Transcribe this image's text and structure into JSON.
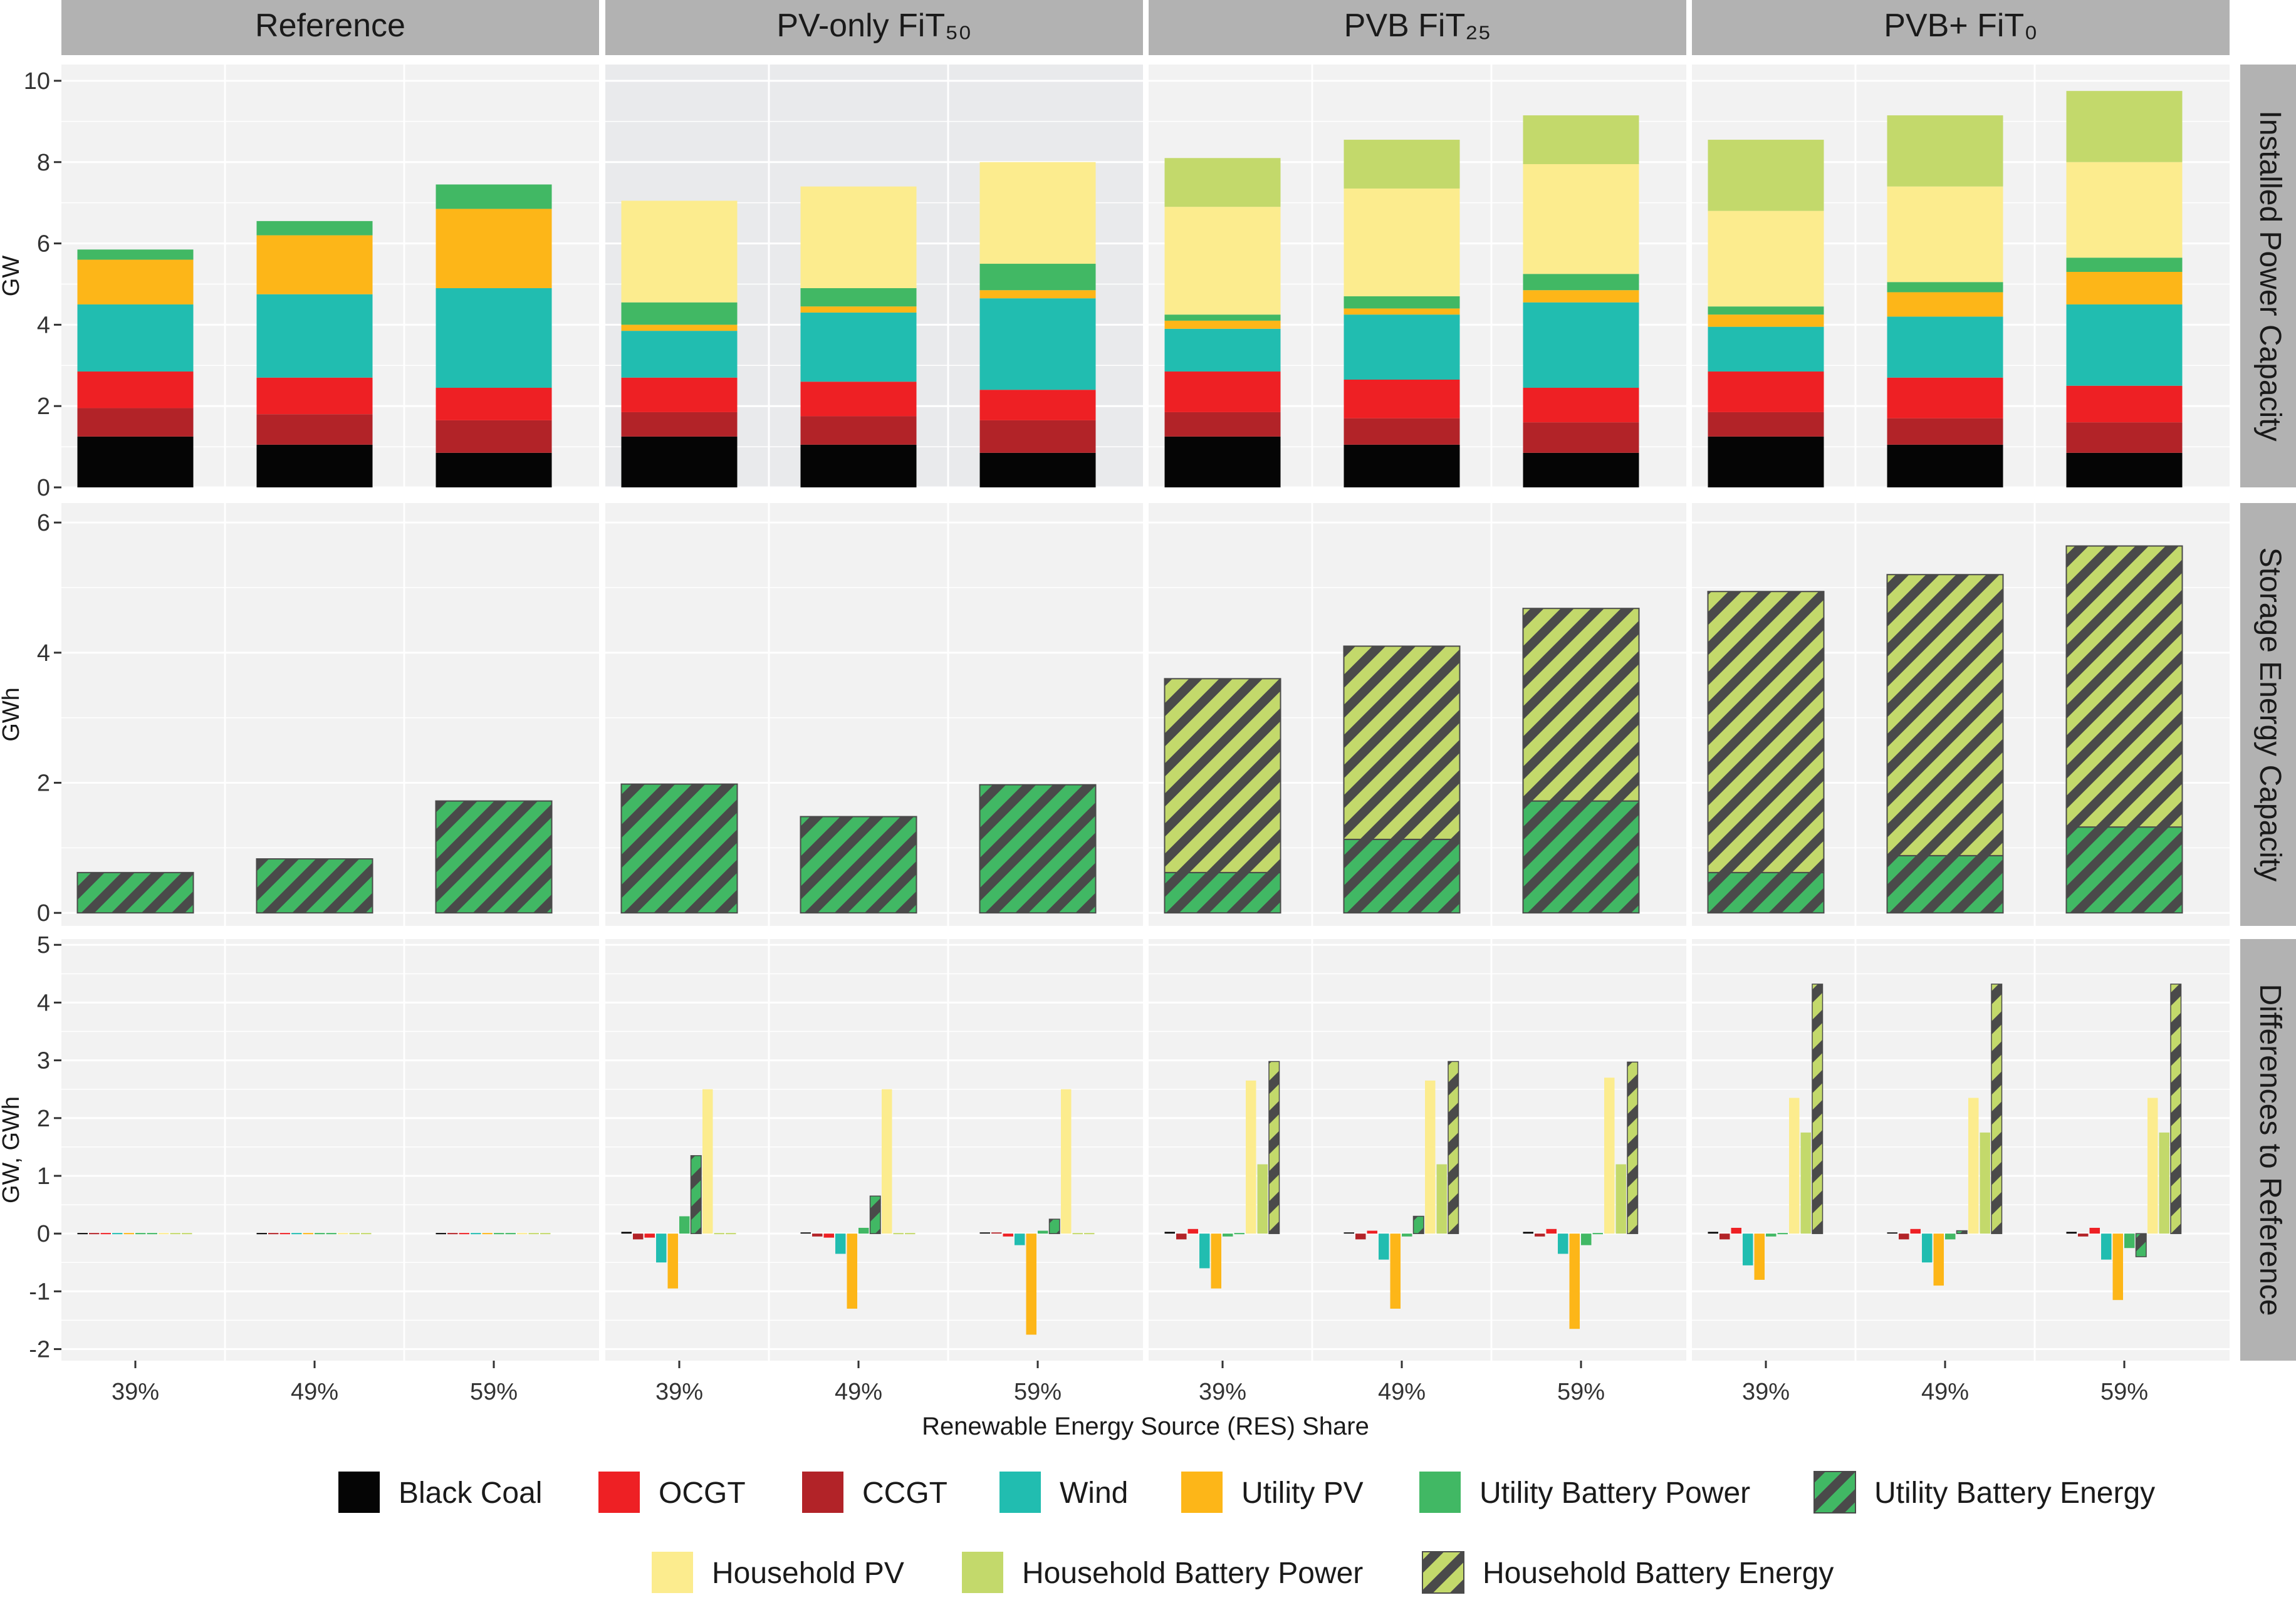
{
  "chart_data": {
    "type": "bar",
    "xlabel": "Renewable Energy Source (RES) Share",
    "categories": [
      "39%",
      "49%",
      "59%"
    ],
    "scenarios": [
      "Reference",
      "PV-only FiT₅₀",
      "PVB FiT₂₅",
      "PVB+ FiT₀"
    ],
    "rows": [
      {
        "title": "Installed Power Capacity",
        "ylabel": "GW",
        "ylim": [
          0,
          10.4
        ],
        "ticks": [
          0,
          2,
          4,
          6,
          8,
          10
        ],
        "tick_labels": [
          "0",
          "2",
          "4",
          "6",
          "8",
          "10"
        ]
      },
      {
        "title": "Storage Energy Capacity",
        "ylabel": "GWh",
        "ylim": [
          -0.2,
          6.3
        ],
        "ticks": [
          0,
          2,
          4,
          6
        ],
        "tick_labels": [
          "0",
          "2",
          "4",
          "6"
        ]
      },
      {
        "title": "Differences to Reference",
        "ylabel": "GW, GWh",
        "ylim": [
          -2.2,
          5.1
        ],
        "ticks": [
          -2,
          -1,
          0,
          1,
          2,
          3,
          4,
          5
        ],
        "tick_labels": [
          "-2",
          "-1",
          "0",
          "1",
          "2",
          "3",
          "4",
          "5"
        ]
      }
    ],
    "technologies": [
      {
        "name": "Black Coal",
        "color": "#050505",
        "pattern": "solid"
      },
      {
        "name": "OCGT",
        "color": "#ee2024",
        "pattern": "solid"
      },
      {
        "name": "CCGT",
        "color": "#b22328",
        "pattern": "solid"
      },
      {
        "name": "Wind",
        "color": "#21bdb0",
        "pattern": "solid"
      },
      {
        "name": "Utility PV",
        "color": "#fdb618",
        "pattern": "solid"
      },
      {
        "name": "Utility Battery Power",
        "color": "#41b864",
        "pattern": "solid"
      },
      {
        "name": "Utility Battery Energy",
        "color": "#41b864",
        "pattern": "hatch"
      },
      {
        "name": "Household PV",
        "color": "#fcec8e",
        "pattern": "solid"
      },
      {
        "name": "Household Battery Power",
        "color": "#c3d96b",
        "pattern": "solid"
      },
      {
        "name": "Household Battery Energy",
        "color": "#c3d96b",
        "pattern": "hatch"
      }
    ],
    "power_order": [
      "Black Coal",
      "CCGT",
      "OCGT",
      "Wind",
      "Utility PV",
      "Utility Battery Power",
      "Household PV",
      "Household Battery Power"
    ],
    "installed_power": [
      [
        {
          "Black Coal": 1.25,
          "CCGT": 0.7,
          "OCGT": 0.9,
          "Wind": 1.65,
          "Utility PV": 1.1,
          "Utility Battery Power": 0.25
        },
        {
          "Black Coal": 1.05,
          "CCGT": 0.75,
          "OCGT": 0.9,
          "Wind": 2.05,
          "Utility PV": 1.45,
          "Utility Battery Power": 0.35
        },
        {
          "Black Coal": 0.85,
          "CCGT": 0.8,
          "OCGT": 0.8,
          "Wind": 2.45,
          "Utility PV": 1.95,
          "Utility Battery Power": 0.6
        }
      ],
      [
        {
          "Black Coal": 1.25,
          "CCGT": 0.6,
          "OCGT": 0.85,
          "Wind": 1.15,
          "Utility PV": 0.15,
          "Utility Battery Power": 0.55,
          "Household PV": 2.5
        },
        {
          "Black Coal": 1.05,
          "CCGT": 0.7,
          "OCGT": 0.85,
          "Wind": 1.7,
          "Utility PV": 0.15,
          "Utility Battery Power": 0.45,
          "Household PV": 2.5
        },
        {
          "Black Coal": 0.85,
          "CCGT": 0.8,
          "OCGT": 0.75,
          "Wind": 2.25,
          "Utility PV": 0.2,
          "Utility Battery Power": 0.65,
          "Household PV": 2.5
        }
      ],
      [
        {
          "Black Coal": 1.25,
          "CCGT": 0.6,
          "OCGT": 1.0,
          "Wind": 1.05,
          "Utility PV": 0.2,
          "Utility Battery Power": 0.15,
          "Household PV": 2.65,
          "Household Battery Power": 1.2
        },
        {
          "Black Coal": 1.05,
          "CCGT": 0.65,
          "OCGT": 0.95,
          "Wind": 1.6,
          "Utility PV": 0.15,
          "Utility Battery Power": 0.3,
          "Household PV": 2.65,
          "Household Battery Power": 1.2
        },
        {
          "Black Coal": 0.85,
          "CCGT": 0.75,
          "OCGT": 0.85,
          "Wind": 2.1,
          "Utility PV": 0.3,
          "Utility Battery Power": 0.4,
          "Household PV": 2.7,
          "Household Battery Power": 1.2
        }
      ],
      [
        {
          "Black Coal": 1.25,
          "CCGT": 0.6,
          "OCGT": 1.0,
          "Wind": 1.1,
          "Utility PV": 0.3,
          "Utility Battery Power": 0.2,
          "Household PV": 2.35,
          "Household Battery Power": 1.75
        },
        {
          "Black Coal": 1.05,
          "CCGT": 0.65,
          "OCGT": 1.0,
          "Wind": 1.5,
          "Utility PV": 0.6,
          "Utility Battery Power": 0.25,
          "Household PV": 2.35,
          "Household Battery Power": 1.75
        },
        {
          "Black Coal": 0.85,
          "CCGT": 0.75,
          "OCGT": 0.9,
          "Wind": 2.0,
          "Utility PV": 0.8,
          "Utility Battery Power": 0.35,
          "Household PV": 2.35,
          "Household Battery Power": 1.75
        }
      ]
    ],
    "storage_order": [
      "Utility Battery Energy",
      "Household Battery Energy"
    ],
    "storage_energy": [
      [
        {
          "Utility Battery Energy": 0.62
        },
        {
          "Utility Battery Energy": 0.83
        },
        {
          "Utility Battery Energy": 1.72
        }
      ],
      [
        {
          "Utility Battery Energy": 1.98
        },
        {
          "Utility Battery Energy": 1.48
        },
        {
          "Utility Battery Energy": 1.97
        }
      ],
      [
        {
          "Utility Battery Energy": 0.62,
          "Household Battery Energy": 2.98
        },
        {
          "Utility Battery Energy": 1.13,
          "Household Battery Energy": 2.97
        },
        {
          "Utility Battery Energy": 1.72,
          "Household Battery Energy": 2.96
        }
      ],
      [
        {
          "Utility Battery Energy": 0.62,
          "Household Battery Energy": 4.32
        },
        {
          "Utility Battery Energy": 0.88,
          "Household Battery Energy": 4.32
        },
        {
          "Utility Battery Energy": 1.32,
          "Household Battery Energy": 4.32
        }
      ]
    ],
    "difference_order": [
      "Black Coal",
      "CCGT",
      "OCGT",
      "Wind",
      "Utility PV",
      "Utility Battery Power",
      "Utility Battery Energy",
      "Household PV",
      "Household Battery Power",
      "Household Battery Energy"
    ],
    "differences": [
      [
        [
          0,
          0,
          0,
          0,
          0,
          0,
          0,
          0,
          0,
          0
        ],
        [
          0,
          0,
          0,
          0,
          0,
          0,
          0,
          0,
          0,
          0
        ],
        [
          0,
          0,
          0,
          0,
          0,
          0,
          0,
          0,
          0,
          0
        ]
      ],
      [
        [
          0.03,
          -0.1,
          -0.07,
          -0.5,
          -0.95,
          0.3,
          1.35,
          2.5,
          0,
          0
        ],
        [
          0.02,
          -0.05,
          -0.07,
          -0.35,
          -1.3,
          0.1,
          0.65,
          2.5,
          0,
          0
        ],
        [
          0.02,
          0.02,
          -0.05,
          -0.2,
          -1.75,
          0.05,
          0.25,
          2.5,
          0,
          0
        ]
      ],
      [
        [
          0.03,
          -0.1,
          0.08,
          -0.6,
          -0.95,
          -0.05,
          0,
          2.65,
          1.2,
          2.98
        ],
        [
          0.02,
          -0.1,
          0.05,
          -0.45,
          -1.3,
          -0.05,
          0.3,
          2.65,
          1.2,
          2.98
        ],
        [
          0.03,
          -0.05,
          0.08,
          -0.35,
          -1.65,
          -0.2,
          0,
          2.7,
          1.2,
          2.97
        ]
      ],
      [
        [
          0.03,
          -0.1,
          0.1,
          -0.55,
          -0.8,
          -0.05,
          0,
          2.35,
          1.75,
          4.32
        ],
        [
          0.02,
          -0.1,
          0.08,
          -0.5,
          -0.9,
          -0.1,
          0.05,
          2.35,
          1.75,
          4.32
        ],
        [
          0.03,
          -0.05,
          0.1,
          -0.45,
          -1.15,
          -0.25,
          -0.4,
          2.35,
          1.75,
          4.32
        ]
      ]
    ],
    "grid": true,
    "legend_position": "bottom"
  }
}
